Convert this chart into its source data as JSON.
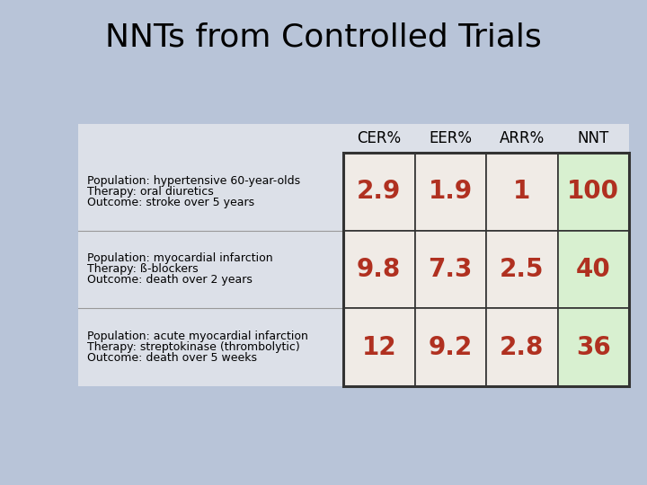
{
  "title": "NNTs from Controlled Trials",
  "title_fontsize": 26,
  "background_color": "#b8c4d8",
  "rows": [
    {
      "label": [
        "Population: hypertensive 60-year-olds",
        "Therapy: oral diuretics",
        "Outcome: stroke over 5 years"
      ],
      "values": [
        "2.9",
        "1.9",
        "1",
        "100"
      ]
    },
    {
      "label": [
        "Population: myocardial infarction",
        "Therapy: ß-blockers",
        "Outcome: death over 2 years"
      ],
      "values": [
        "9.8",
        "7.3",
        "2.5",
        "40"
      ]
    },
    {
      "label": [
        "Population: acute myocardial infarction",
        "Therapy: streptokinase (thrombolytic)",
        "Outcome: death over 5 weeks"
      ],
      "values": [
        "12",
        "9.2",
        "2.8",
        "36"
      ]
    }
  ],
  "col_headers": [
    "CER%",
    "EER%",
    "ARR%",
    "NNT"
  ],
  "data_text_color": "#b03020",
  "header_text_color": "#000000",
  "label_text_color": "#000000",
  "cell_bg_normal": "#f0ebe6",
  "cell_bg_nnt": "#d8f0d0",
  "table_border_color": "#333333",
  "label_area_bg": "#dce0e8",
  "header_area_bg": "#dce0e8"
}
